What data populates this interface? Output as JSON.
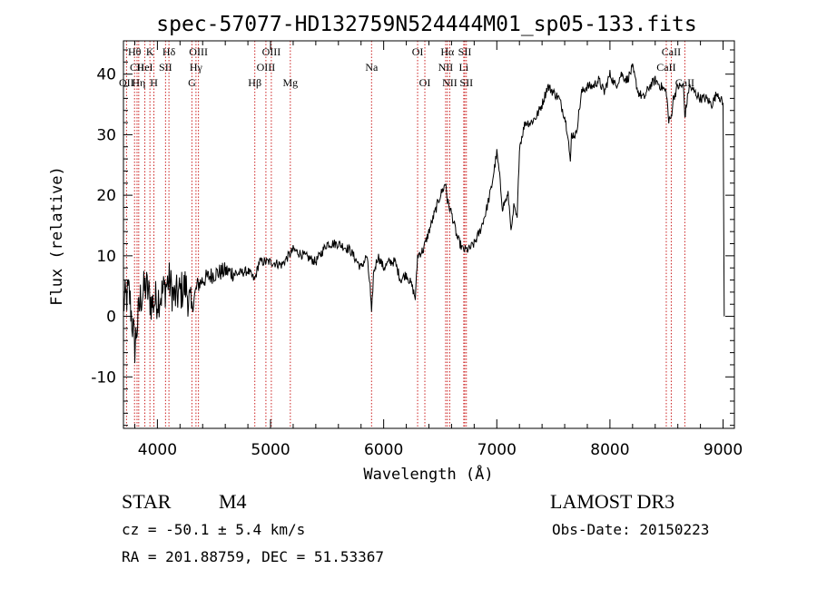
{
  "chart_data": {
    "type": "line",
    "title": "spec-57077-HD132759N524444M01_sp05-133.fits",
    "xlabel": "Wavelength (Å)",
    "ylabel": "Flux (relative)",
    "xlim": [
      3700,
      9100
    ],
    "ylim": [
      -18.5,
      45.5
    ],
    "x_ticks": [
      4000,
      5000,
      6000,
      7000,
      8000,
      9000
    ],
    "y_ticks": [
      -10,
      0,
      10,
      20,
      30,
      40
    ],
    "grid": false,
    "series": [
      {
        "name": "flux",
        "x": [
          3700,
          3750,
          3800,
          3850,
          3900,
          3950,
          4000,
          4050,
          4100,
          4150,
          4200,
          4250,
          4300,
          4350,
          4400,
          4500,
          4600,
          4700,
          4800,
          4860,
          4900,
          5000,
          5100,
          5200,
          5300,
          5400,
          5500,
          5600,
          5700,
          5800,
          5850,
          5880,
          5893,
          5910,
          5950,
          6000,
          6050,
          6100,
          6150,
          6200,
          6250,
          6280,
          6300,
          6350,
          6400,
          6450,
          6500,
          6550,
          6563,
          6600,
          6650,
          6700,
          6750,
          6800,
          6850,
          6900,
          6950,
          7000,
          7020,
          7050,
          7100,
          7130,
          7150,
          7180,
          7200,
          7250,
          7300,
          7350,
          7400,
          7450,
          7500,
          7550,
          7600,
          7630,
          7650,
          7660,
          7700,
          7750,
          7800,
          7850,
          7900,
          7950,
          8000,
          8050,
          8100,
          8150,
          8200,
          8250,
          8300,
          8350,
          8400,
          8450,
          8500,
          8520,
          8542,
          8560,
          8600,
          8650,
          8662,
          8700,
          8750,
          8800,
          8850,
          8900,
          8950,
          9000,
          9010
        ],
        "values": [
          2,
          4,
          -5,
          3,
          5,
          2,
          3,
          4,
          6,
          3,
          4,
          5,
          1,
          5,
          6,
          7,
          7.5,
          7,
          7.5,
          6,
          9,
          9,
          8.5,
          11,
          10,
          9,
          12,
          12,
          11,
          8,
          10,
          5,
          0,
          7,
          10,
          8,
          9,
          9,
          6,
          7,
          5,
          3,
          10,
          11,
          14,
          17,
          20,
          22,
          19,
          17,
          13,
          11,
          11,
          12,
          14,
          17,
          21,
          27,
          24,
          18,
          20,
          14,
          18,
          16,
          28,
          32,
          32,
          33,
          35,
          38,
          37,
          36,
          33,
          30,
          25,
          30,
          30,
          37,
          38,
          38,
          39,
          37,
          40,
          38,
          40,
          39,
          41,
          37,
          36,
          38,
          39,
          38,
          37,
          32,
          33,
          36,
          38,
          38,
          33,
          38,
          37,
          36,
          36,
          35,
          37,
          35,
          0
        ]
      }
    ],
    "spectral_lines": [
      {
        "name": "Hθ",
        "x": 3798,
        "row": 1
      },
      {
        "name": "CII",
        "x": 3820,
        "row": 2
      },
      {
        "name": "OII",
        "x": 3727,
        "row": 3
      },
      {
        "name": "K",
        "x": 3934,
        "row": 1
      },
      {
        "name": "HeI",
        "x": 3889,
        "row": 2
      },
      {
        "name": "Hη",
        "x": 3835,
        "row": 3
      },
      {
        "name": "Hδ",
        "x": 4102,
        "row": 1
      },
      {
        "name": "SII",
        "x": 4072,
        "row": 2
      },
      {
        "name": "H",
        "x": 3969,
        "row": 3
      },
      {
        "name": "OIII",
        "x": 4363,
        "row": 1
      },
      {
        "name": "Hγ",
        "x": 4341,
        "row": 2
      },
      {
        "name": "G",
        "x": 4305,
        "row": 3
      },
      {
        "name": "OIII",
        "x": 5007,
        "row": 1
      },
      {
        "name": "OIII",
        "x": 4959,
        "row": 2
      },
      {
        "name": "Hβ",
        "x": 4861,
        "row": 3
      },
      {
        "name": "Mg",
        "x": 5175,
        "row": 3
      },
      {
        "name": "Na",
        "x": 5893,
        "row": 2
      },
      {
        "name": "OI",
        "x": 6300,
        "row": 1
      },
      {
        "name": "OI",
        "x": 6364,
        "row": 3
      },
      {
        "name": "Hα",
        "x": 6563,
        "row": 1
      },
      {
        "name": "SII",
        "x": 6717,
        "row": 1
      },
      {
        "name": "NII",
        "x": 6548,
        "row": 2
      },
      {
        "name": "Li",
        "x": 6708,
        "row": 2
      },
      {
        "name": "NII",
        "x": 6584,
        "row": 3
      },
      {
        "name": "SII",
        "x": 6731,
        "row": 3
      },
      {
        "name": "CaII",
        "x": 8542,
        "row": 1
      },
      {
        "name": "CaII",
        "x": 8498,
        "row": 2
      },
      {
        "name": "CaII",
        "x": 8662,
        "row": 3
      }
    ],
    "annotations": {
      "object_class": "STAR",
      "subclass": "M4",
      "survey": "LAMOST DR3",
      "cz": "cz = -50.1 ± 5.4 km/s",
      "obs_date": "Obs-Date: 20150223",
      "coords": "RA = 201.88759, DEC =  51.53367"
    }
  },
  "colors": {
    "line": "#000000",
    "marker": "#cc2222",
    "axis": "#000000"
  }
}
